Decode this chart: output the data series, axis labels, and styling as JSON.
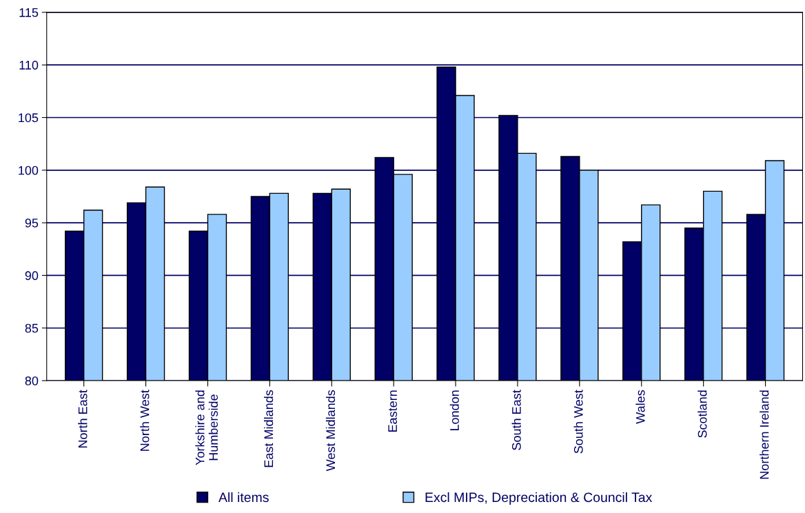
{
  "chart_data": {
    "type": "bar",
    "categories": [
      "North East",
      "North West",
      "Yorkshire and\nHumberside",
      "East Midlands",
      "West Midlands",
      "Eastern",
      "London",
      "South East",
      "South West",
      "Wales",
      "Scotland",
      "Northern Ireland"
    ],
    "series": [
      {
        "name": "All items",
        "color": "#000066",
        "values": [
          94.2,
          96.9,
          94.2,
          97.5,
          97.8,
          101.2,
          109.8,
          105.2,
          101.3,
          93.2,
          94.5,
          95.8
        ]
      },
      {
        "name": "Excl MIPs, Depreciation & Council Tax",
        "color": "#99ccff",
        "values": [
          96.2,
          98.4,
          95.8,
          97.8,
          98.2,
          99.6,
          107.1,
          101.6,
          100.0,
          96.7,
          98.0,
          100.9
        ]
      }
    ],
    "ylim": [
      80,
      115
    ],
    "yticks": [
      80,
      85,
      90,
      95,
      100,
      105,
      110,
      115
    ],
    "grid": "y",
    "legend": "bottom"
  }
}
